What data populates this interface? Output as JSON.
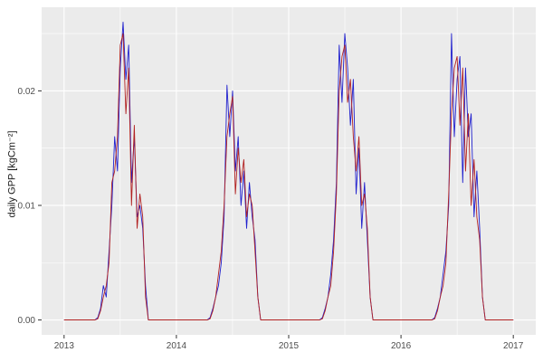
{
  "figure": {
    "kind": "ggplot2-style time series plot",
    "panel_bg": "#EBEBEB",
    "outer_bg": "#FFFFFF"
  },
  "chart_data": {
    "type": "line",
    "title": "",
    "xlabel": "",
    "ylabel": "daily GPP [kgCm⁻²]",
    "xlim": [
      2012.8,
      2017.2
    ],
    "ylim": [
      -0.0013,
      0.0273
    ],
    "x_ticks": [
      2013,
      2014,
      2015,
      2016,
      2017
    ],
    "x_tick_labels": [
      "2013",
      "2014",
      "2015",
      "2016",
      "2017"
    ],
    "x_minor_ticks": [
      2013.5,
      2014.5,
      2015.5,
      2016.5
    ],
    "y_ticks": [
      0.0,
      0.01,
      0.02
    ],
    "y_tick_labels": [
      "0.00",
      "0.01",
      "0.02"
    ],
    "y_minor_ticks": [
      0.005,
      0.015,
      0.025
    ],
    "grid": true,
    "legend": "none",
    "panel_bg": "#EBEBEB",
    "grid_color": "#FFFFFF",
    "axis_text_color": "#4D4D4D",
    "axis_title_color": "#1A1A1A",
    "tick_mark_color": "#333333",
    "x_encoding": {
      "start": 2013.0,
      "step": 0.025,
      "count": 161,
      "unit": "decimal year"
    },
    "series": [
      {
        "name": "modelled-gpp-blue",
        "color": "#2020CE",
        "values": [
          0,
          0,
          0,
          0,
          0,
          0,
          0,
          0,
          0,
          0,
          0,
          0,
          0.0002,
          0.001,
          0.003,
          0.002,
          0.006,
          0.01,
          0.016,
          0.013,
          0.022,
          0.026,
          0.021,
          0.024,
          0.012,
          0.016,
          0.009,
          0.01,
          0.008,
          0.003,
          0,
          0,
          0,
          0,
          0,
          0,
          0,
          0,
          0,
          0,
          0,
          0,
          0,
          0,
          0,
          0,
          0,
          0,
          0,
          0,
          0,
          0,
          0.0002,
          0.001,
          0.002,
          0.003,
          0.005,
          0.009,
          0.0205,
          0.016,
          0.02,
          0.013,
          0.016,
          0.01,
          0.013,
          0.008,
          0.012,
          0.009,
          0.007,
          0.002,
          0,
          0,
          0,
          0,
          0,
          0,
          0,
          0,
          0,
          0,
          0,
          0,
          0,
          0,
          0,
          0,
          0,
          0,
          0,
          0,
          0,
          0,
          0.0002,
          0.001,
          0.002,
          0.004,
          0.007,
          0.012,
          0.024,
          0.019,
          0.025,
          0.022,
          0.017,
          0.021,
          0.011,
          0.015,
          0.008,
          0.012,
          0.007,
          0.002,
          0,
          0,
          0,
          0,
          0,
          0,
          0,
          0,
          0,
          0,
          0,
          0,
          0,
          0,
          0,
          0,
          0,
          0,
          0,
          0,
          0,
          0,
          0.0002,
          0.001,
          0.002,
          0.004,
          0.006,
          0.01,
          0.025,
          0.016,
          0.021,
          0.023,
          0.012,
          0.022,
          0.016,
          0.018,
          0.009,
          0.013,
          0.008,
          0.002,
          0,
          0,
          0,
          0,
          0,
          0,
          0,
          0,
          0,
          0,
          0
        ]
      },
      {
        "name": "observed-gpp-darkred",
        "color": "#B22222",
        "values": [
          0,
          0,
          0,
          0,
          0,
          0,
          0,
          0,
          0,
          0,
          0,
          0,
          0.0001,
          0.0008,
          0.002,
          0.003,
          0.005,
          0.012,
          0.013,
          0.016,
          0.024,
          0.025,
          0.018,
          0.022,
          0.01,
          0.017,
          0.008,
          0.011,
          0.009,
          0.002,
          0,
          0,
          0,
          0,
          0,
          0,
          0,
          0,
          0,
          0,
          0,
          0,
          0,
          0,
          0,
          0,
          0,
          0,
          0,
          0,
          0,
          0,
          0.0001,
          0.0008,
          0.002,
          0.004,
          0.006,
          0.01,
          0.016,
          0.018,
          0.0195,
          0.011,
          0.015,
          0.012,
          0.014,
          0.009,
          0.011,
          0.01,
          0.006,
          0.002,
          0,
          0,
          0,
          0,
          0,
          0,
          0,
          0,
          0,
          0,
          0,
          0,
          0,
          0,
          0,
          0,
          0,
          0,
          0,
          0,
          0,
          0,
          0.0001,
          0.0008,
          0.002,
          0.003,
          0.006,
          0.011,
          0.02,
          0.023,
          0.024,
          0.019,
          0.021,
          0.016,
          0.013,
          0.016,
          0.01,
          0.011,
          0.008,
          0.002,
          0,
          0,
          0,
          0,
          0,
          0,
          0,
          0,
          0,
          0,
          0,
          0,
          0,
          0,
          0,
          0,
          0,
          0,
          0,
          0,
          0,
          0,
          0.0001,
          0.0008,
          0.002,
          0.003,
          0.005,
          0.011,
          0.018,
          0.022,
          0.023,
          0.017,
          0.022,
          0.013,
          0.018,
          0.01,
          0.014,
          0.009,
          0.007,
          0.002,
          0,
          0,
          0,
          0,
          0,
          0,
          0,
          0,
          0,
          0,
          0
        ]
      }
    ]
  }
}
